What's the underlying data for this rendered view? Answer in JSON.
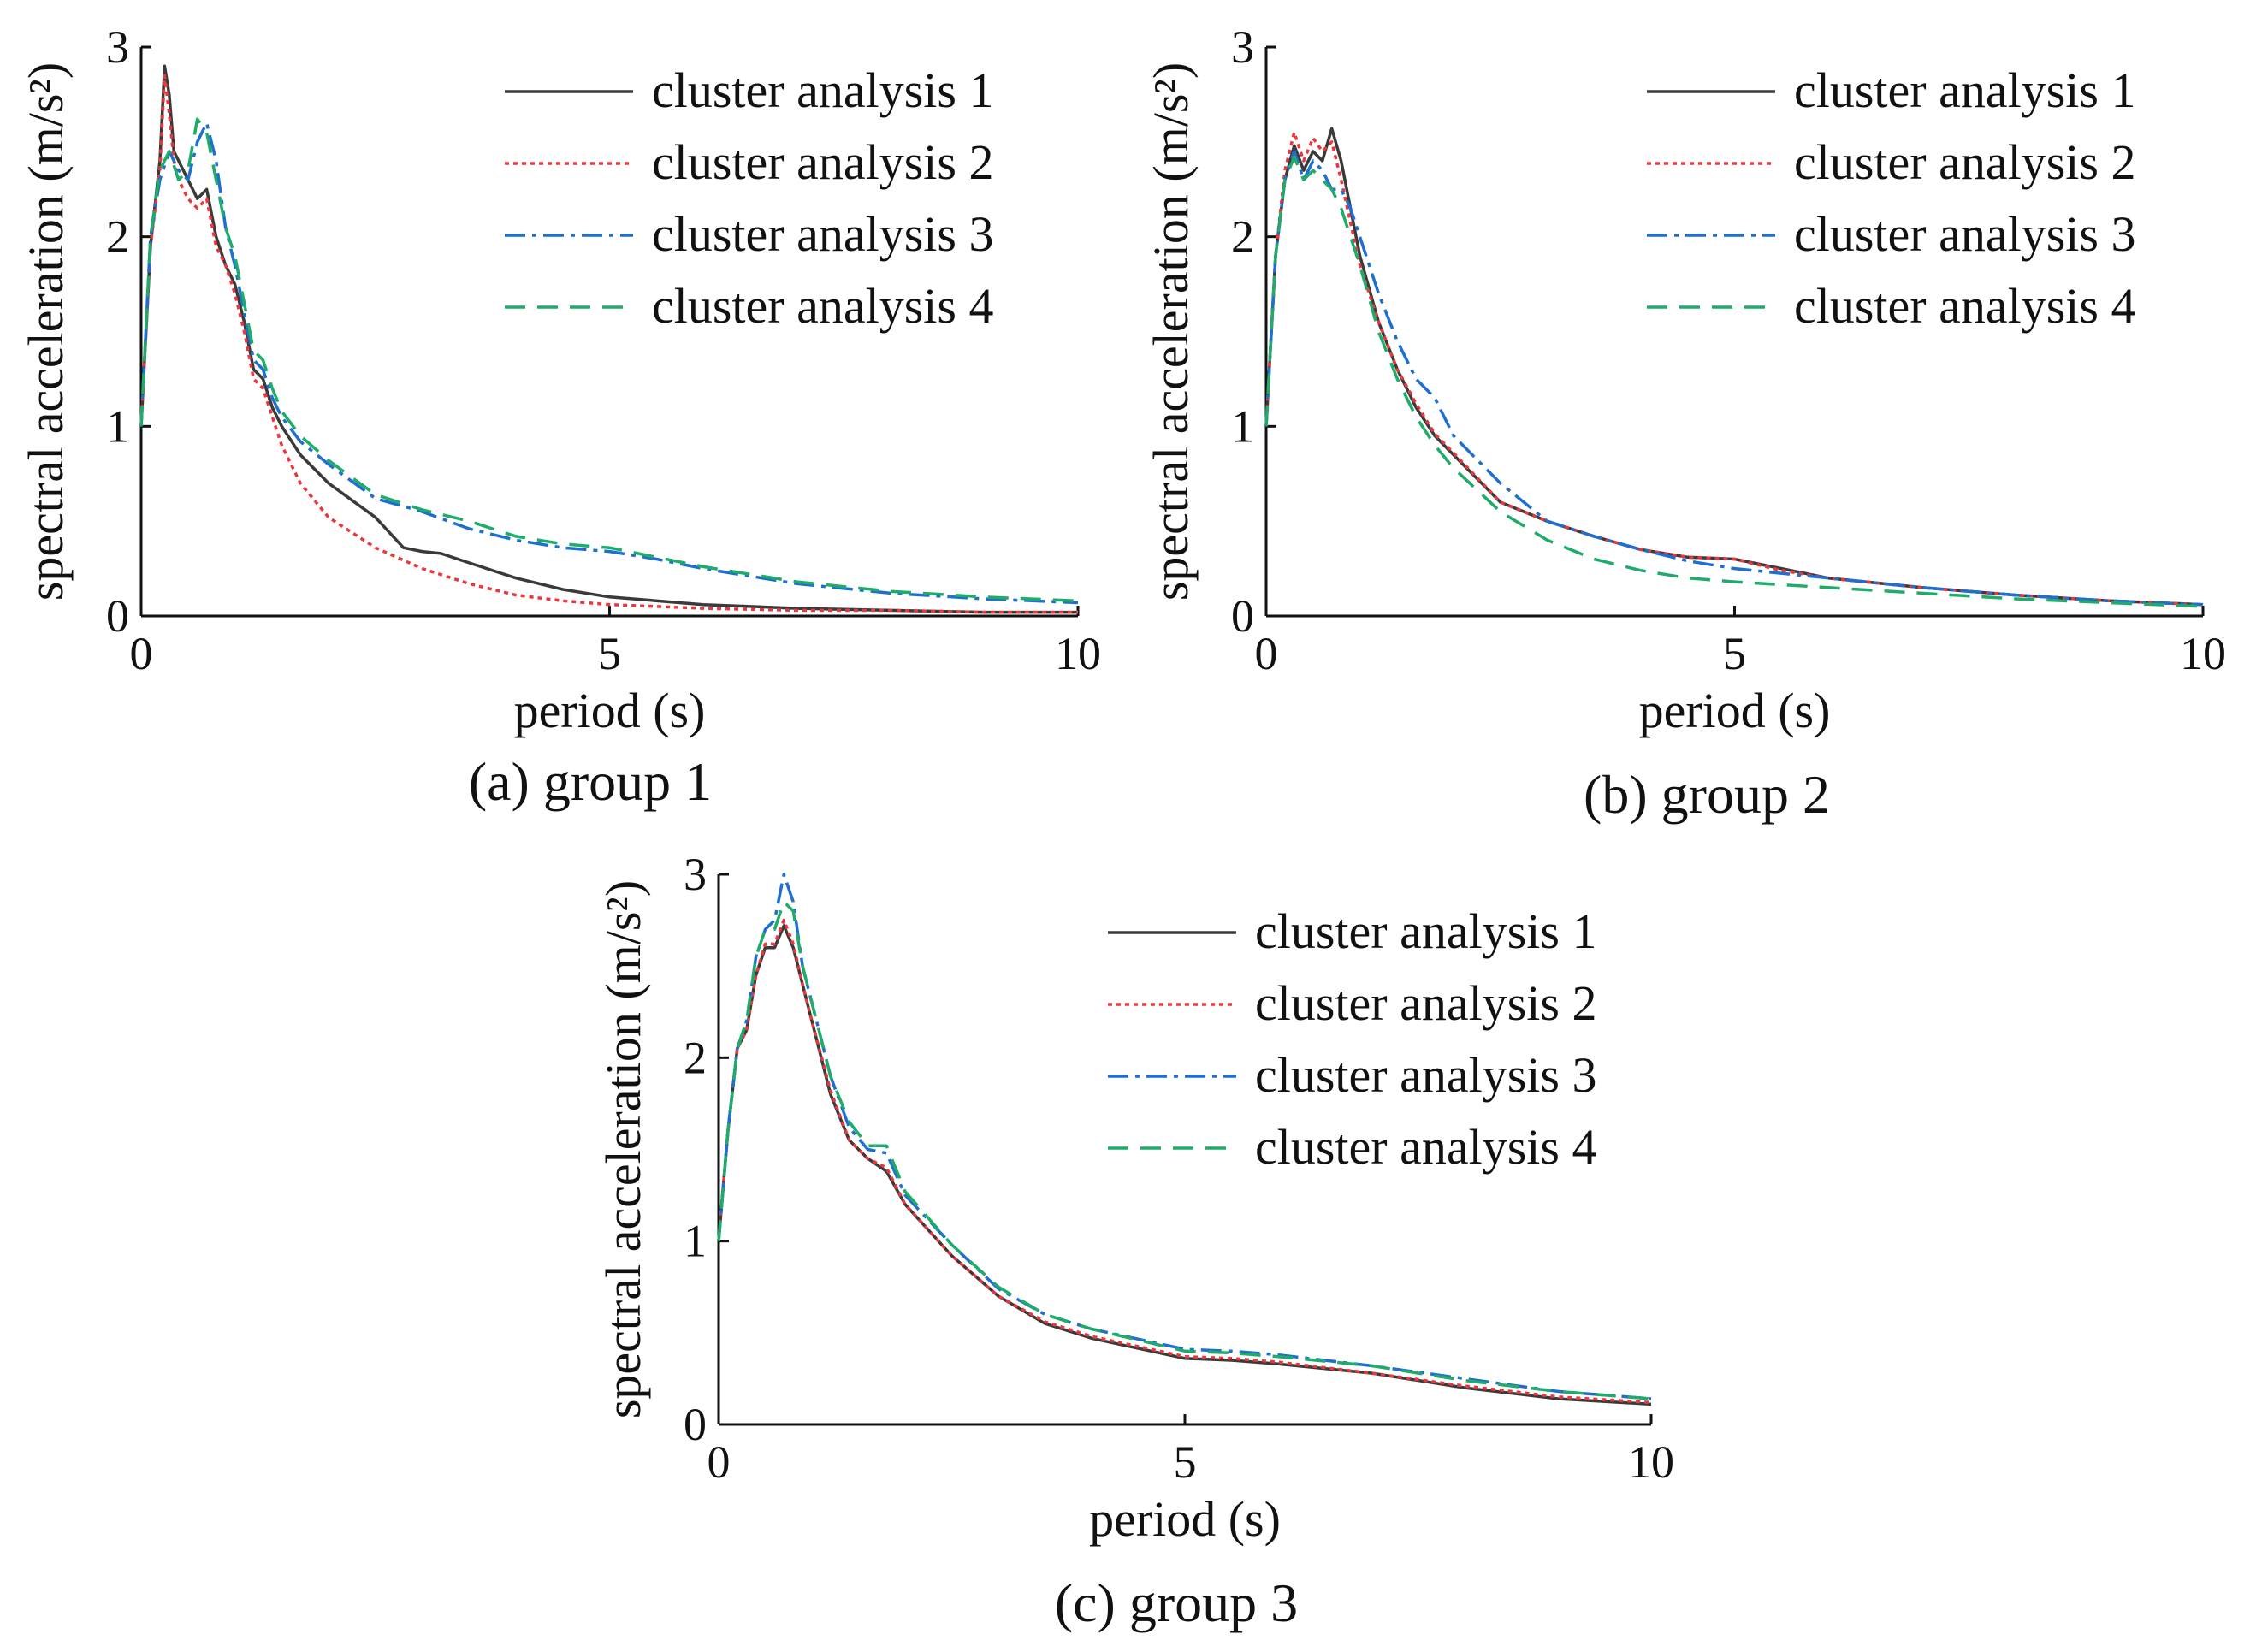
{
  "series_styles": [
    {
      "color": "#3a3a3a",
      "dash": ""
    },
    {
      "color": "#e8383d",
      "dash": "5,5"
    },
    {
      "color": "#1f6fd1",
      "dash": "24,8,5,8"
    },
    {
      "color": "#1fab6a",
      "dash": "24,14"
    }
  ],
  "chart_data": [
    {
      "type": "line",
      "title": "(a) group 1",
      "xlabel": "period (s)",
      "ylabel": "spectral acceleration (m/s²)",
      "xlim": [
        0,
        10
      ],
      "ylim": [
        0,
        3
      ],
      "xticks": [
        "0",
        "5",
        "10"
      ],
      "yticks": [
        "0",
        "1",
        "2",
        "3"
      ],
      "legend_position": "top-right",
      "series": [
        {
          "name": "cluster analysis 1",
          "x": [
            0,
            0.1,
            0.2,
            0.25,
            0.3,
            0.35,
            0.4,
            0.5,
            0.6,
            0.7,
            0.8,
            0.9,
            1.0,
            1.1,
            1.2,
            1.3,
            1.4,
            1.5,
            1.7,
            2.0,
            2.5,
            2.8,
            3.0,
            3.2,
            3.5,
            4.0,
            4.5,
            5.0,
            6.0,
            7.0,
            8.0,
            9.0,
            10.0
          ],
          "y": [
            1.0,
            1.95,
            2.4,
            2.9,
            2.75,
            2.45,
            2.4,
            2.3,
            2.2,
            2.25,
            2.0,
            1.85,
            1.75,
            1.55,
            1.3,
            1.25,
            1.1,
            1.0,
            0.85,
            0.7,
            0.52,
            0.36,
            0.34,
            0.33,
            0.28,
            0.2,
            0.14,
            0.1,
            0.06,
            0.04,
            0.03,
            0.02,
            0.02
          ]
        },
        {
          "name": "cluster analysis 2",
          "x": [
            0,
            0.1,
            0.2,
            0.25,
            0.3,
            0.35,
            0.4,
            0.5,
            0.6,
            0.7,
            0.8,
            0.9,
            1.0,
            1.1,
            1.2,
            1.3,
            1.4,
            1.5,
            1.7,
            2.0,
            2.5,
            3.0,
            3.5,
            4.0,
            4.5,
            5.0,
            6.0,
            7.0,
            8.0,
            9.0,
            10.0
          ],
          "y": [
            1.0,
            1.95,
            2.35,
            2.85,
            2.65,
            2.4,
            2.3,
            2.2,
            2.15,
            2.2,
            1.95,
            1.85,
            1.7,
            1.5,
            1.25,
            1.2,
            1.05,
            0.9,
            0.7,
            0.52,
            0.36,
            0.25,
            0.17,
            0.11,
            0.08,
            0.06,
            0.04,
            0.03,
            0.03,
            0.02,
            0.02
          ]
        },
        {
          "name": "cluster analysis 3",
          "x": [
            0,
            0.1,
            0.2,
            0.3,
            0.4,
            0.5,
            0.6,
            0.7,
            0.8,
            0.9,
            1.0,
            1.1,
            1.2,
            1.3,
            1.4,
            1.5,
            1.7,
            2.0,
            2.5,
            3.0,
            3.5,
            4.0,
            4.5,
            5.0,
            5.5,
            6.0,
            7.0,
            8.0,
            9.0,
            10.0
          ],
          "y": [
            1.0,
            2.0,
            2.3,
            2.45,
            2.35,
            2.3,
            2.5,
            2.6,
            2.4,
            2.05,
            1.85,
            1.6,
            1.35,
            1.3,
            1.15,
            1.05,
            0.92,
            0.8,
            0.62,
            0.55,
            0.46,
            0.4,
            0.36,
            0.34,
            0.3,
            0.25,
            0.17,
            0.12,
            0.09,
            0.07
          ]
        },
        {
          "name": "cluster analysis 4",
          "x": [
            0,
            0.1,
            0.2,
            0.3,
            0.4,
            0.5,
            0.6,
            0.7,
            0.8,
            0.9,
            1.0,
            1.1,
            1.2,
            1.3,
            1.4,
            1.5,
            1.7,
            2.0,
            2.5,
            3.0,
            3.5,
            4.0,
            4.5,
            5.0,
            5.5,
            6.0,
            7.0,
            8.0,
            9.0,
            10.0
          ],
          "y": [
            1.0,
            2.0,
            2.35,
            2.45,
            2.3,
            2.35,
            2.62,
            2.55,
            2.3,
            2.05,
            1.9,
            1.65,
            1.4,
            1.35,
            1.2,
            1.08,
            0.95,
            0.82,
            0.64,
            0.56,
            0.5,
            0.42,
            0.38,
            0.36,
            0.31,
            0.26,
            0.18,
            0.13,
            0.1,
            0.08
          ]
        }
      ]
    },
    {
      "type": "line",
      "title": "(b) group 2",
      "xlabel": "period (s)",
      "ylabel": "spectral acceleration (m/s²)",
      "xlim": [
        0,
        10
      ],
      "ylim": [
        0,
        3
      ],
      "xticks": [
        "0",
        "5",
        "10"
      ],
      "yticks": [
        "0",
        "1",
        "2",
        "3"
      ],
      "legend_position": "top-right",
      "series": [
        {
          "name": "cluster analysis 1",
          "x": [
            0,
            0.1,
            0.2,
            0.3,
            0.4,
            0.5,
            0.6,
            0.7,
            0.8,
            1.0,
            1.2,
            1.4,
            1.6,
            1.8,
            2.0,
            2.5,
            3.0,
            3.5,
            4.0,
            4.5,
            5.0,
            5.5,
            6.0,
            7.0,
            8.0,
            9.0,
            10.0
          ],
          "y": [
            1.0,
            1.9,
            2.3,
            2.48,
            2.35,
            2.45,
            2.4,
            2.57,
            2.4,
            1.9,
            1.55,
            1.3,
            1.1,
            0.95,
            0.85,
            0.6,
            0.5,
            0.42,
            0.35,
            0.31,
            0.3,
            0.25,
            0.2,
            0.15,
            0.11,
            0.08,
            0.06
          ]
        },
        {
          "name": "cluster analysis 2",
          "x": [
            0,
            0.1,
            0.2,
            0.3,
            0.4,
            0.5,
            0.6,
            0.7,
            0.8,
            1.0,
            1.2,
            1.4,
            1.6,
            1.8,
            2.0,
            2.5,
            3.0,
            3.5,
            4.0,
            4.5,
            5.0,
            5.5,
            6.0,
            7.0,
            8.0,
            9.0,
            10.0
          ],
          "y": [
            1.0,
            1.9,
            2.35,
            2.55,
            2.4,
            2.52,
            2.45,
            2.5,
            2.3,
            1.85,
            1.55,
            1.3,
            1.12,
            0.96,
            0.86,
            0.6,
            0.5,
            0.42,
            0.35,
            0.31,
            0.3,
            0.24,
            0.2,
            0.15,
            0.11,
            0.08,
            0.06
          ]
        },
        {
          "name": "cluster analysis 3",
          "x": [
            0,
            0.1,
            0.2,
            0.3,
            0.4,
            0.5,
            0.6,
            0.7,
            0.8,
            0.9,
            1.0,
            1.2,
            1.4,
            1.6,
            1.8,
            2.0,
            2.5,
            3.0,
            3.5,
            4.0,
            4.5,
            5.0,
            6.0,
            7.0,
            8.0,
            9.0,
            10.0
          ],
          "y": [
            1.0,
            1.9,
            2.3,
            2.45,
            2.3,
            2.4,
            2.35,
            2.25,
            2.25,
            2.15,
            2.0,
            1.7,
            1.45,
            1.25,
            1.15,
            0.95,
            0.7,
            0.5,
            0.42,
            0.35,
            0.29,
            0.25,
            0.2,
            0.15,
            0.11,
            0.08,
            0.06
          ]
        },
        {
          "name": "cluster analysis 4",
          "x": [
            0,
            0.1,
            0.2,
            0.3,
            0.4,
            0.5,
            0.6,
            0.7,
            0.8,
            1.0,
            1.2,
            1.4,
            1.6,
            1.8,
            2.0,
            2.5,
            3.0,
            3.5,
            4.0,
            4.5,
            5.0,
            6.0,
            7.0,
            8.0,
            9.0,
            10.0
          ],
          "y": [
            1.0,
            1.9,
            2.3,
            2.42,
            2.3,
            2.35,
            2.3,
            2.25,
            2.15,
            1.85,
            1.5,
            1.25,
            1.05,
            0.9,
            0.78,
            0.55,
            0.4,
            0.3,
            0.24,
            0.2,
            0.18,
            0.15,
            0.12,
            0.09,
            0.07,
            0.05
          ]
        }
      ]
    },
    {
      "type": "line",
      "title": "(c) group 3",
      "xlabel": "period (s)",
      "ylabel": "spectral acceleration (m/s²)",
      "xlim": [
        0,
        10
      ],
      "ylim": [
        0,
        3
      ],
      "xticks": [
        "0",
        "5",
        "10"
      ],
      "yticks": [
        "0",
        "1",
        "2",
        "3"
      ],
      "legend_position": "top-right",
      "series": [
        {
          "name": "cluster analysis 1",
          "x": [
            0,
            0.1,
            0.2,
            0.3,
            0.4,
            0.5,
            0.6,
            0.7,
            0.8,
            0.9,
            1.0,
            1.2,
            1.4,
            1.6,
            1.8,
            2.0,
            2.5,
            3.0,
            3.5,
            4.0,
            5.0,
            5.5,
            6.0,
            7.0,
            8.0,
            9.0,
            10.0
          ],
          "y": [
            1.0,
            1.6,
            2.05,
            2.15,
            2.45,
            2.6,
            2.6,
            2.72,
            2.6,
            2.4,
            2.2,
            1.8,
            1.55,
            1.45,
            1.38,
            1.2,
            0.92,
            0.7,
            0.55,
            0.47,
            0.36,
            0.35,
            0.33,
            0.28,
            0.2,
            0.14,
            0.11
          ]
        },
        {
          "name": "cluster analysis 2",
          "x": [
            0,
            0.1,
            0.2,
            0.3,
            0.4,
            0.5,
            0.6,
            0.7,
            0.8,
            0.9,
            1.0,
            1.2,
            1.4,
            1.6,
            1.8,
            2.0,
            2.5,
            3.0,
            3.5,
            4.0,
            5.0,
            5.5,
            6.0,
            7.0,
            8.0,
            9.0,
            10.0
          ],
          "y": [
            1.0,
            1.6,
            2.05,
            2.15,
            2.45,
            2.62,
            2.62,
            2.75,
            2.62,
            2.4,
            2.2,
            1.82,
            1.55,
            1.45,
            1.4,
            1.2,
            0.92,
            0.7,
            0.56,
            0.48,
            0.37,
            0.36,
            0.34,
            0.28,
            0.21,
            0.15,
            0.12
          ]
        },
        {
          "name": "cluster analysis 3",
          "x": [
            0,
            0.1,
            0.2,
            0.3,
            0.4,
            0.5,
            0.6,
            0.7,
            0.8,
            0.9,
            1.0,
            1.2,
            1.4,
            1.6,
            1.8,
            2.0,
            2.5,
            3.0,
            3.5,
            4.0,
            5.0,
            5.5,
            6.0,
            7.0,
            8.0,
            9.0,
            10.0
          ],
          "y": [
            1.0,
            1.6,
            2.05,
            2.2,
            2.55,
            2.7,
            2.75,
            3.0,
            2.85,
            2.5,
            2.3,
            1.9,
            1.62,
            1.5,
            1.48,
            1.25,
            0.98,
            0.74,
            0.6,
            0.52,
            0.41,
            0.4,
            0.38,
            0.32,
            0.25,
            0.18,
            0.14
          ]
        },
        {
          "name": "cluster analysis 4",
          "x": [
            0,
            0.1,
            0.2,
            0.3,
            0.4,
            0.5,
            0.6,
            0.7,
            0.8,
            0.9,
            1.0,
            1.2,
            1.4,
            1.6,
            1.8,
            2.0,
            2.5,
            3.0,
            3.5,
            4.0,
            5.0,
            5.5,
            6.0,
            7.0,
            8.0,
            9.0,
            10.0
          ],
          "y": [
            1.0,
            1.6,
            2.05,
            2.2,
            2.55,
            2.7,
            2.7,
            2.85,
            2.8,
            2.5,
            2.3,
            1.9,
            1.65,
            1.52,
            1.52,
            1.27,
            0.98,
            0.75,
            0.6,
            0.52,
            0.4,
            0.39,
            0.37,
            0.32,
            0.24,
            0.18,
            0.14
          ]
        }
      ]
    }
  ]
}
